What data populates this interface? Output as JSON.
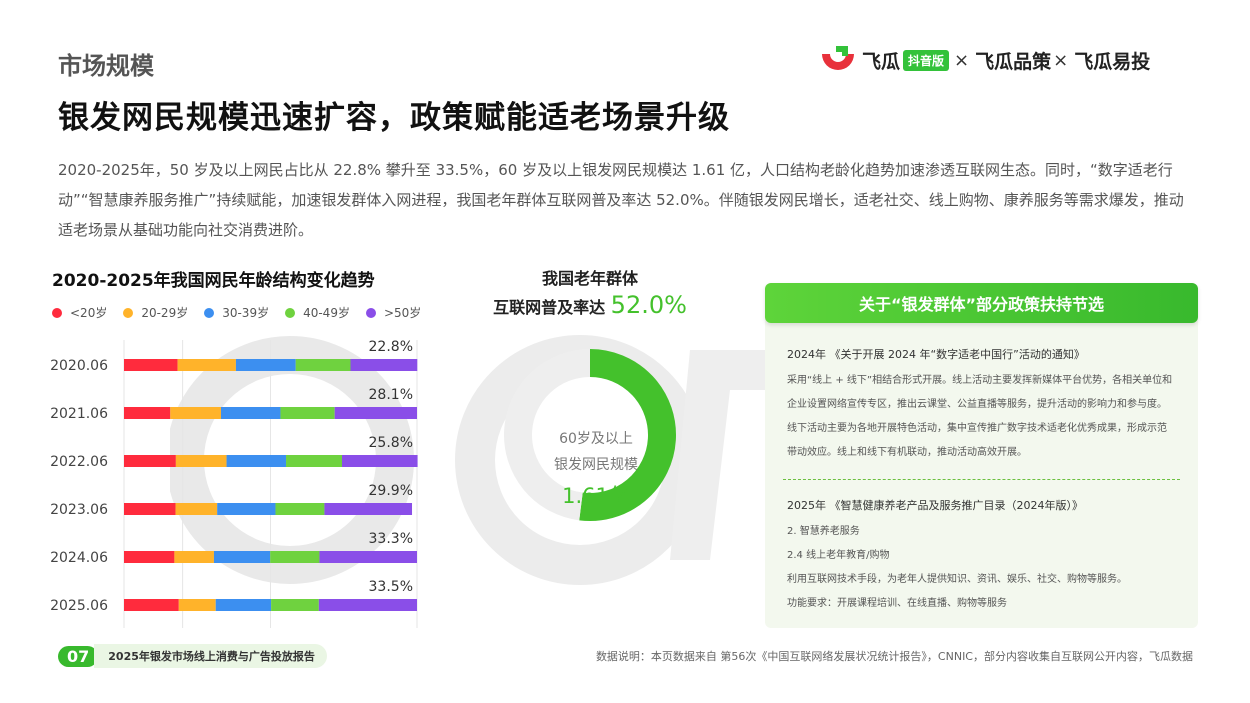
{
  "header": {
    "section": "市场规模",
    "headline": "银发网民规模迅速扩容，政策赋能适老场景升级",
    "intro": "2020-2025年，50 岁及以上网民占比从 22.8% 攀升至 33.5%，60 岁及以上银发网民规模达 1.61 亿，人口结构老龄化趋势加速渗透互联网生态。同时，“数字适老行动”“智慧康养服务推广”持续赋能，加速银发群体入网进程，我国老年群体互联网普及率达 52.0%。伴随银发网民增长，适老社交、线上购物、康养服务等需求爆发，推动适老场景从基础功能向社交消费进阶。"
  },
  "brand": {
    "name1": "飞瓜",
    "badge": "抖音版",
    "sep1": "×",
    "name2": "飞瓜品策",
    "sep2": "×",
    "name3": "飞瓜易投",
    "logo_icon": "feigua-logo-icon",
    "logo_red": "#e8313b",
    "logo_green": "#33c23a"
  },
  "chart_data": [
    {
      "type": "bar",
      "orientation": "horizontal",
      "stacked": true,
      "normalized": true,
      "title": "2020-2025年我国网民年龄结构变化趋势",
      "categories": [
        "2020.06",
        "2021.06",
        "2022.06",
        "2023.06",
        "2024.06",
        "2025.06"
      ],
      "series": [
        {
          "name": "<20岁",
          "color": "#ff2b3d",
          "values": [
            18.3,
            15.8,
            17.7,
            17.6,
            17.2,
            18.7
          ]
        },
        {
          "name": "20-29岁",
          "color": "#ffb32a",
          "values": [
            19.9,
            17.3,
            17.3,
            14.2,
            13.5,
            12.6
          ]
        },
        {
          "name": "30-39岁",
          "color": "#3c8ff0",
          "values": [
            20.4,
            20.3,
            20.3,
            19.9,
            19.2,
            18.9
          ]
        },
        {
          "name": "40-49岁",
          "color": "#6fd23f",
          "values": [
            18.7,
            18.5,
            19.1,
            16.7,
            16.8,
            16.3
          ]
        },
        {
          "name": ">50岁",
          "color": "#8a4ee8",
          "values": [
            22.8,
            28.1,
            25.8,
            29.9,
            33.3,
            33.5
          ]
        }
      ],
      "data_labels": [
        "22.8%",
        "28.1%",
        "25.8%",
        "29.9%",
        "33.3%",
        "33.5%"
      ],
      "legend": "top-left",
      "xlim": [
        0,
        100
      ]
    },
    {
      "type": "pie",
      "donut": true,
      "title_line1": "我国老年群体",
      "title_line2": "互联网普及率达",
      "value_label": "52.0%",
      "values": [
        52.0,
        48.0
      ],
      "colors": [
        "#44c12c",
        "#eeeeee"
      ],
      "center_label_line1": "60岁及以上",
      "center_label_line2": "银发网民规模",
      "center_value": "1.61亿"
    }
  ],
  "policy": {
    "title": "关于“银发群体”部分政策扶持节选",
    "doc1_title": "2024年 《关于开展 2024 年“数字适老中国行”活动的通知》",
    "doc1_body": "采用“线上 + 线下”相结合形式开展。线上活动主要发挥新媒体平台优势，各相关单位和企业设置网络宣传专区，推出云课堂、公益直播等服务，提升活动的影响力和参与度。线下活动主要为各地开展特色活动，集中宣传推广数字技术适老化优秀成果，形成示范带动效应。线上和线下有机联动，推动活动高效开展。",
    "doc2_title": "2025年 《智慧健康养老产品及服务推广目录（2024年版）》",
    "doc2_item1": "2. 智慧养老服务",
    "doc2_item2": "2.4 线上老年教育/购物",
    "doc2_line3": "利用互联网技术手段，为老年人提供知识、资讯、娱乐、社交、购物等服务。",
    "doc2_line4": "功能要求：开展课程培训、在线直播、购物等服务"
  },
  "footer": {
    "page": "07",
    "report": "2025年银发市场线上消费与广告投放报告",
    "note": "数据说明：本页数据来自 第56次《中国互联网络发展状况统计报告》，CNNIC，部分内容收集自互联网公开内容，飞瓜数据"
  }
}
